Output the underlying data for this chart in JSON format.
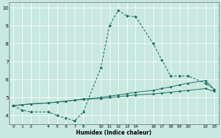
{
  "xlabel": "Humidex (Indice chaleur)",
  "ylabel": "",
  "bg_color": "#c8e8e0",
  "grid_color": "#ffffff",
  "line_color": "#1a6e62",
  "xlim": [
    -0.5,
    23.5
  ],
  "ylim": [
    3.5,
    10.3
  ],
  "xtick_positions": [
    0,
    1,
    2,
    4,
    5,
    6,
    7,
    8,
    10,
    11,
    12,
    13,
    14,
    16,
    17,
    18,
    19,
    20,
    22,
    23
  ],
  "xtick_labels": [
    "0",
    "1",
    "2",
    "4",
    "5",
    "6",
    "7",
    "8",
    "10",
    "11",
    "12",
    "13",
    "14",
    "16",
    "17",
    "18",
    "19",
    "20",
    "22",
    "23"
  ],
  "ytick_positions": [
    4,
    5,
    6,
    7,
    8,
    9,
    10
  ],
  "ytick_labels": [
    "4",
    "5",
    "6",
    "7",
    "8",
    "9",
    "10"
  ],
  "line1_x": [
    0,
    1,
    2,
    4,
    5,
    6,
    7,
    8,
    10,
    11,
    12,
    13,
    14,
    16,
    17,
    18,
    19,
    20,
    22,
    23
  ],
  "line1_y": [
    4.55,
    4.3,
    4.2,
    4.2,
    4.0,
    3.85,
    3.7,
    4.2,
    6.65,
    9.0,
    9.85,
    9.55,
    9.5,
    8.0,
    7.1,
    6.2,
    6.2,
    6.2,
    5.8,
    5.45
  ],
  "line2_x": [
    0,
    1,
    2,
    4,
    5,
    6,
    7,
    8,
    10,
    11,
    12,
    13,
    14,
    16,
    17,
    18,
    19,
    20,
    22,
    23
  ],
  "line2_y": [
    4.55,
    4.6,
    4.65,
    4.7,
    4.75,
    4.8,
    4.85,
    4.92,
    5.0,
    5.08,
    5.15,
    5.22,
    5.3,
    5.4,
    5.5,
    5.6,
    5.7,
    5.8,
    5.95,
    5.45
  ],
  "line3_x": [
    0,
    1,
    2,
    4,
    5,
    6,
    7,
    8,
    10,
    11,
    12,
    13,
    14,
    16,
    17,
    18,
    19,
    20,
    22,
    23
  ],
  "line3_y": [
    4.55,
    4.6,
    4.65,
    4.7,
    4.75,
    4.8,
    4.85,
    4.9,
    4.95,
    5.0,
    5.05,
    5.1,
    5.15,
    5.2,
    5.25,
    5.3,
    5.35,
    5.4,
    5.5,
    5.35
  ]
}
